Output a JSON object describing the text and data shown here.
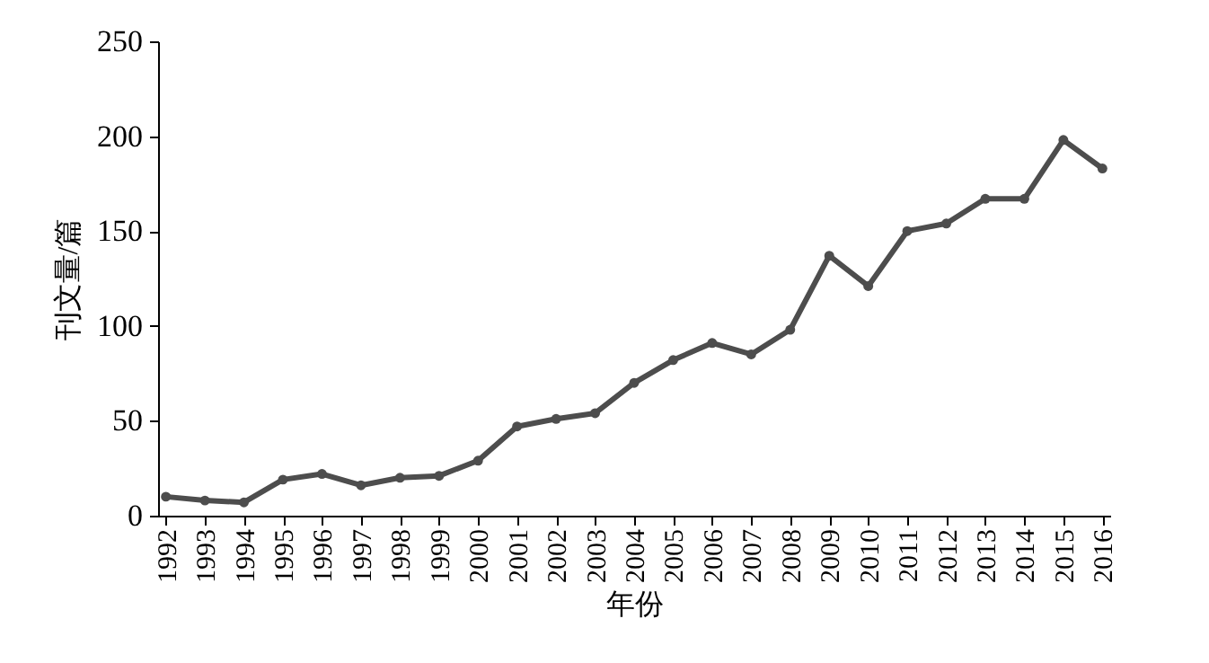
{
  "chart_data": {
    "type": "line",
    "xlabel": "年份",
    "ylabel": "刊文量/篇",
    "categories": [
      "1992",
      "1993",
      "1994",
      "1995",
      "1996",
      "1997",
      "1998",
      "1999",
      "2000",
      "2001",
      "2002",
      "2003",
      "2004",
      "2005",
      "2006",
      "2007",
      "2008",
      "2009",
      "2010",
      "2011",
      "2012",
      "2013",
      "2014",
      "2015",
      "2016"
    ],
    "series": [
      {
        "color": "#4d4d4d",
        "values": [
          10,
          8,
          7,
          19,
          22,
          16,
          20,
          21,
          29,
          47,
          51,
          54,
          70,
          82,
          91,
          85,
          98,
          137,
          121,
          150,
          154,
          167,
          167,
          198,
          183
        ]
      }
    ],
    "ylim": [
      0,
      250
    ],
    "yticks": [
      0,
      50,
      100,
      150,
      200,
      250
    ],
    "grid": false,
    "marker": "circle",
    "line_style": "solid"
  }
}
